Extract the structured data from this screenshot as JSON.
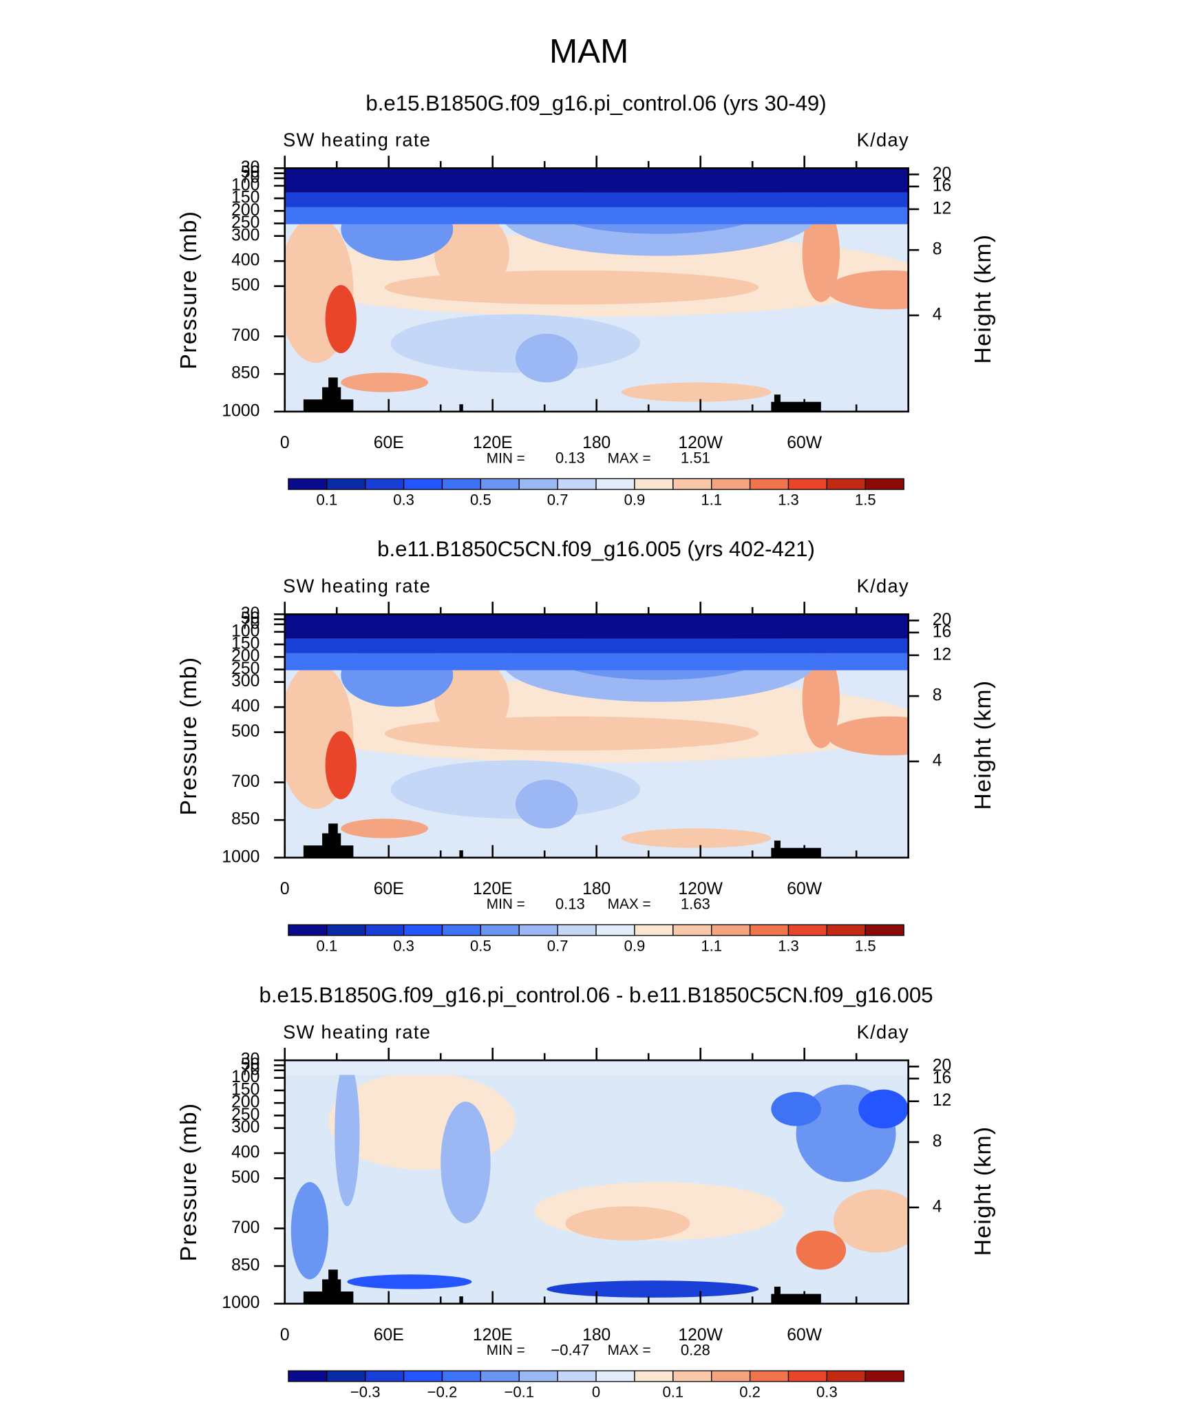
{
  "title": "MAM",
  "chart_data": [
    {
      "type": "contour",
      "title": "b.e15.B1850G.f09_g16.pi_control.06 (yrs 30-49)",
      "left_label": "SW heating rate",
      "units": "K/day",
      "ylabel": "Pressure (mb)",
      "y2label": "Height (km)",
      "xlim": [
        0,
        360
      ],
      "xticks": [
        0,
        {
          "value": 60,
          "label": "60E"
        },
        {
          "value": 120,
          "label": "120E"
        },
        180,
        {
          "value": 240,
          "label": "120W"
        },
        {
          "value": 300,
          "label": "60W"
        }
      ],
      "xminor_ticks": [
        30,
        90,
        150,
        210,
        270,
        330
      ],
      "ylim": [
        1000,
        30
      ],
      "yticks": [
        30,
        50,
        70,
        100,
        150,
        200,
        250,
        300,
        400,
        500,
        700,
        850,
        1000
      ],
      "y2ticks": [
        20,
        16,
        12,
        8,
        4
      ],
      "min_label": "MIN =",
      "min": 0.13,
      "max_label": "MAX =",
      "max": 1.51,
      "levels": [
        0.1,
        0.2,
        0.3,
        0.4,
        0.5,
        0.6,
        0.7,
        0.8,
        0.9,
        1.0,
        1.1,
        1.2,
        1.3,
        1.4,
        1.5
      ],
      "colorbar_ticks": [
        0.1,
        0.3,
        0.5,
        0.7,
        0.9,
        1.1,
        1.3,
        1.5
      ],
      "colors": [
        "#0a0a8c",
        "#0a2aa8",
        "#1a3fd6",
        "#2455ff",
        "#3f73f5",
        "#6b95f3",
        "#9bb8f5",
        "#c4d7f7",
        "#e3edf9",
        "#fbe5d3",
        "#f8c8aa",
        "#f4a480",
        "#f0744c",
        "#e8452a",
        "#c22a14",
        "#8c0a08"
      ]
    },
    {
      "type": "contour",
      "title": "b.e11.B1850C5CN.f09_g16.005 (yrs 402-421)",
      "left_label": "SW heating rate",
      "units": "K/day",
      "ylabel": "Pressure (mb)",
      "y2label": "Height (km)",
      "xlim": [
        0,
        360
      ],
      "xticks": [
        0,
        {
          "value": 60,
          "label": "60E"
        },
        {
          "value": 120,
          "label": "120E"
        },
        180,
        {
          "value": 240,
          "label": "120W"
        },
        {
          "value": 300,
          "label": "60W"
        }
      ],
      "xminor_ticks": [
        30,
        90,
        150,
        210,
        270,
        330
      ],
      "ylim": [
        1000,
        30
      ],
      "yticks": [
        30,
        50,
        70,
        100,
        150,
        200,
        250,
        300,
        400,
        500,
        700,
        850,
        1000
      ],
      "y2ticks": [
        20,
        16,
        12,
        8,
        4
      ],
      "min_label": "MIN =",
      "min": 0.13,
      "max_label": "MAX =",
      "max": 1.63,
      "levels": [
        0.1,
        0.2,
        0.3,
        0.4,
        0.5,
        0.6,
        0.7,
        0.8,
        0.9,
        1.0,
        1.1,
        1.2,
        1.3,
        1.4,
        1.5
      ],
      "colorbar_ticks": [
        0.1,
        0.3,
        0.5,
        0.7,
        0.9,
        1.1,
        1.3,
        1.5
      ],
      "colors": [
        "#0a0a8c",
        "#0a2aa8",
        "#1a3fd6",
        "#2455ff",
        "#3f73f5",
        "#6b95f3",
        "#9bb8f5",
        "#c4d7f7",
        "#e3edf9",
        "#fbe5d3",
        "#f8c8aa",
        "#f4a480",
        "#f0744c",
        "#e8452a",
        "#c22a14",
        "#8c0a08"
      ]
    },
    {
      "type": "contour",
      "title": "b.e15.B1850G.f09_g16.pi_control.06 - b.e11.B1850C5CN.f09_g16.005",
      "left_label": "SW heating rate",
      "units": "K/day",
      "ylabel": "Pressure (mb)",
      "y2label": "Height (km)",
      "xlim": [
        0,
        360
      ],
      "xticks": [
        0,
        {
          "value": 60,
          "label": "60E"
        },
        {
          "value": 120,
          "label": "120E"
        },
        180,
        {
          "value": 240,
          "label": "120W"
        },
        {
          "value": 300,
          "label": "60W"
        }
      ],
      "xminor_ticks": [
        30,
        90,
        150,
        210,
        270,
        330
      ],
      "ylim": [
        1000,
        30
      ],
      "yticks": [
        30,
        50,
        70,
        100,
        150,
        200,
        250,
        300,
        400,
        500,
        700,
        850,
        1000
      ],
      "y2ticks": [
        20,
        16,
        12,
        8,
        4
      ],
      "min_label": "MIN =",
      "min": {
        "value": -0.47,
        "label": "−0.47"
      },
      "max_label": "MAX =",
      "max": 0.28,
      "levels": [
        -0.35,
        -0.3,
        -0.25,
        -0.2,
        -0.15,
        -0.1,
        -0.05,
        0,
        0.05,
        0.1,
        0.15,
        0.2,
        0.25,
        0.3,
        0.35
      ],
      "colorbar_ticks": [
        {
          "value": -0.3,
          "label": "−0.3"
        },
        {
          "value": -0.2,
          "label": "−0.2"
        },
        {
          "value": -0.1,
          "label": "−0.1"
        },
        0,
        0.1,
        0.2,
        0.3
      ],
      "colors": [
        "#0a0a8c",
        "#0a2aa8",
        "#1a3fd6",
        "#2455ff",
        "#3f73f5",
        "#6b95f3",
        "#9bb8f5",
        "#c4d7f7",
        "#e3edf9",
        "#fbe5d3",
        "#f8c8aa",
        "#f4a480",
        "#f0744c",
        "#e8452a",
        "#c22a14",
        "#8c0a08"
      ]
    }
  ]
}
